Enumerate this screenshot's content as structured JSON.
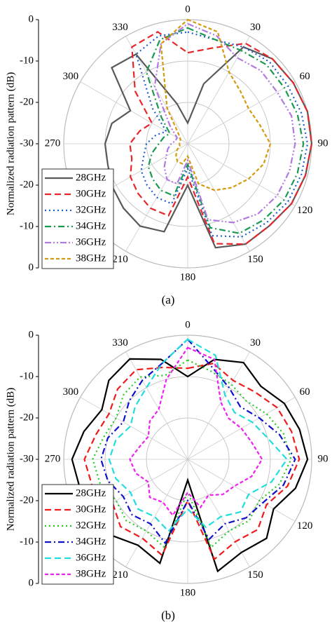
{
  "chart_data": [
    {
      "type": "polar",
      "caption": "(a)",
      "ylabel": "Normalized radiation pattern (dB)",
      "rlim": [
        -30,
        0
      ],
      "rticks": [
        0,
        -10,
        -20,
        -30
      ],
      "thetaticks": [
        0,
        30,
        60,
        90,
        120,
        150,
        180,
        210,
        240,
        270,
        300,
        330
      ],
      "theta": [
        0,
        15,
        30,
        45,
        60,
        75,
        90,
        105,
        120,
        135,
        150,
        165,
        180,
        195,
        210,
        225,
        240,
        255,
        270,
        285,
        300,
        315,
        330,
        345
      ],
      "grid": true,
      "legend": "lower left",
      "series": [
        {
          "name": "28GHz",
          "color": "#595959",
          "style": "solid",
          "values": [
            -25,
            -15,
            -3,
            -1,
            -0.5,
            0,
            0,
            -0.5,
            -1,
            -2,
            -2,
            -4,
            -20,
            -8,
            -7,
            -8,
            -9,
            -10,
            -10,
            -11,
            -14,
            -4,
            -5,
            -20
          ]
        },
        {
          "name": "30GHz",
          "color": "#e8262a",
          "style": "dashed",
          "values": [
            -8,
            -6,
            -2,
            -1,
            -0.5,
            0,
            0,
            -0.5,
            -1,
            -2,
            -2,
            -5,
            -22,
            -12,
            -12,
            -13,
            -14,
            -16,
            -16,
            -18,
            -20,
            -12,
            -3,
            -2
          ]
        },
        {
          "name": "32GHz",
          "color": "#1f5fd1",
          "style": "dotted",
          "values": [
            -3,
            -4,
            -3,
            -2,
            -2,
            -1.5,
            -1,
            -1.5,
            -2,
            -3,
            -4,
            -7,
            -24,
            -15,
            -15,
            -16,
            -17,
            -19,
            -20,
            -22,
            -24,
            -18,
            -5,
            -3
          ]
        },
        {
          "name": "34GHz",
          "color": "#1a9a50",
          "style": "dashdot",
          "values": [
            -2,
            -4,
            -4,
            -3,
            -3,
            -2.5,
            -2,
            -2.5,
            -3,
            -4,
            -5,
            -9,
            -25,
            -17,
            -17,
            -18,
            -19,
            -21,
            -23,
            -24,
            -25,
            -21,
            -10,
            -4
          ]
        },
        {
          "name": "36GHz",
          "color": "#b07ae0",
          "style": "dashdotdot",
          "values": [
            -1,
            -3,
            -6,
            -5,
            -5,
            -4,
            -4,
            -4.5,
            -5,
            -6,
            -8,
            -11,
            -26,
            -20,
            -20,
            -22,
            -24,
            -25,
            -26,
            -27,
            -27,
            -24,
            -14,
            -5
          ]
        },
        {
          "name": "38GHz",
          "color": "#d49a10",
          "style": "shortdash",
          "values": [
            0,
            -2,
            -10,
            -12,
            -13,
            -12,
            -10,
            -11,
            -13,
            -15,
            -17,
            -20,
            -27,
            -25,
            -25,
            -26,
            -27,
            -28,
            -28,
            -28,
            -28,
            -27,
            -20,
            -5
          ]
        }
      ]
    },
    {
      "type": "polar",
      "caption": "(b)",
      "ylabel": "Normalized radiation pattern (dB)",
      "rlim": [
        -30,
        0
      ],
      "rticks": [
        0,
        -10,
        -20,
        -30
      ],
      "thetaticks": [
        0,
        30,
        60,
        90,
        120,
        150,
        180,
        210,
        240,
        270,
        300,
        330
      ],
      "theta": [
        0,
        15,
        30,
        45,
        60,
        75,
        90,
        105,
        120,
        135,
        150,
        165,
        180,
        195,
        210,
        225,
        240,
        255,
        270,
        285,
        300,
        315,
        330,
        345
      ],
      "grid": true,
      "legend": "lower left",
      "series": [
        {
          "name": "28GHz",
          "color": "#000000",
          "style": "solid",
          "values": [
            -10,
            -5,
            -3,
            -5,
            -3,
            -2,
            -1,
            -3,
            -6,
            -3,
            -4,
            -2,
            -25,
            -4,
            -6,
            -4,
            -7,
            -3,
            -2,
            -4,
            -6,
            -3,
            -2,
            -5
          ]
        },
        {
          "name": "30GHz",
          "color": "#ee1c1c",
          "style": "dashed",
          "values": [
            -8,
            -6,
            -8,
            -7,
            -5,
            -4,
            -3,
            -5,
            -8,
            -6,
            -7,
            -5,
            -20,
            -6,
            -8,
            -7,
            -9,
            -6,
            -5,
            -7,
            -8,
            -6,
            -5,
            -7
          ]
        },
        {
          "name": "32GHz",
          "color": "#22cc22",
          "style": "dotted",
          "values": [
            -6,
            -8,
            -9,
            -10,
            -8,
            -6,
            -5,
            -7,
            -10,
            -9,
            -10,
            -8,
            -22,
            -8,
            -10,
            -9,
            -10,
            -8,
            -7,
            -9,
            -10,
            -8,
            -7,
            -9
          ]
        },
        {
          "name": "34GHz",
          "color": "#1010cc",
          "style": "dashdot",
          "values": [
            -1,
            -7,
            -10,
            -12,
            -10,
            -7,
            -4,
            -6,
            -9,
            -10,
            -12,
            -10,
            -20,
            -9,
            -12,
            -11,
            -12,
            -10,
            -9,
            -10,
            -12,
            -10,
            -8,
            -6
          ]
        },
        {
          "name": "36GHz",
          "color": "#22dddd",
          "style": "dashed",
          "values": [
            -1,
            -4,
            -12,
            -14,
            -12,
            -10,
            -6,
            -9,
            -13,
            -12,
            -14,
            -13,
            -18,
            -12,
            -14,
            -13,
            -14,
            -12,
            -11,
            -12,
            -14,
            -12,
            -10,
            -6
          ]
        },
        {
          "name": "38GHz",
          "color": "#ee22ee",
          "style": "shortdash",
          "values": [
            -3,
            -5,
            -14,
            -16,
            -15,
            -14,
            -12,
            -14,
            -17,
            -18,
            -20,
            -18,
            -22,
            -16,
            -18,
            -17,
            -19,
            -17,
            -16,
            -18,
            -19,
            -17,
            -16,
            -10
          ]
        }
      ]
    }
  ]
}
